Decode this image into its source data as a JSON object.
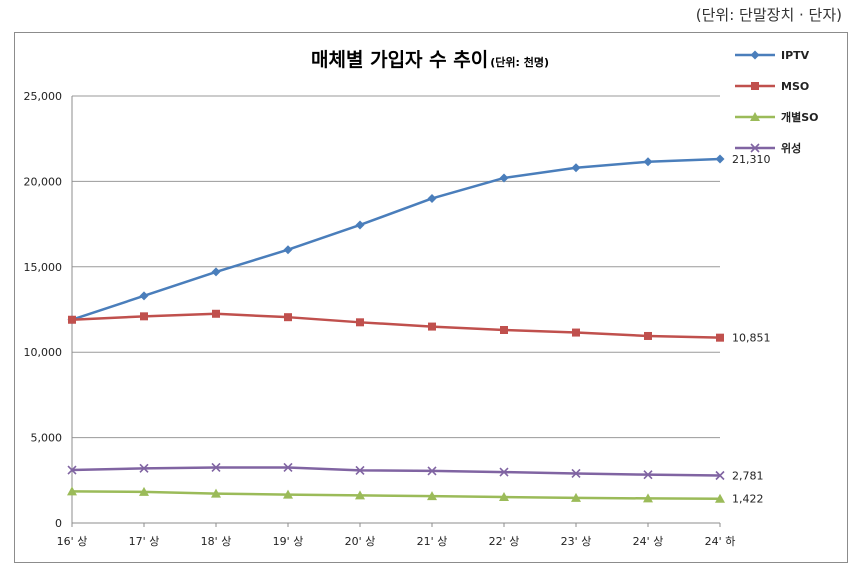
{
  "unit_note": "(단위:  단말장치 · 단자)",
  "chart_data": {
    "type": "line",
    "title": "매체별 가입자 수 추이",
    "subtitle": "(단위: 천명)",
    "xlabel": "",
    "ylabel": "",
    "ylim": [
      0,
      25000
    ],
    "yticks": [
      "0",
      "5,000",
      "10,000",
      "15,000",
      "20,000",
      "25,000"
    ],
    "ytick_values": [
      0,
      5000,
      10000,
      15000,
      20000,
      25000
    ],
    "categories": [
      "16' 상",
      "17' 상",
      "18' 상",
      "19' 상",
      "20' 상",
      "21' 상",
      "22' 상",
      "23' 상",
      "24' 상",
      "24' 하"
    ],
    "grid": "horizontal",
    "legend_position": "right",
    "series": [
      {
        "name": "IPTV",
        "color": "#4a7ebb",
        "marker": "diamond",
        "values": [
          11900,
          13300,
          14700,
          16000,
          17450,
          19000,
          20200,
          20800,
          21150,
          21310
        ],
        "end_label": "21,310"
      },
      {
        "name": "MSO",
        "color": "#c0504d",
        "marker": "square",
        "values": [
          11900,
          12100,
          12250,
          12050,
          11750,
          11500,
          11300,
          11150,
          10950,
          10851
        ],
        "end_label": "10,851"
      },
      {
        "name": "개별SO",
        "color": "#9bbb59",
        "marker": "triangle",
        "values": [
          1850,
          1820,
          1720,
          1660,
          1620,
          1570,
          1520,
          1470,
          1440,
          1422
        ],
        "end_label": "1,422"
      },
      {
        "name": "위성",
        "color": "#8064a2",
        "marker": "x",
        "values": [
          3100,
          3200,
          3250,
          3250,
          3080,
          3050,
          2980,
          2900,
          2830,
          2781
        ],
        "end_label": "2,781"
      }
    ]
  }
}
